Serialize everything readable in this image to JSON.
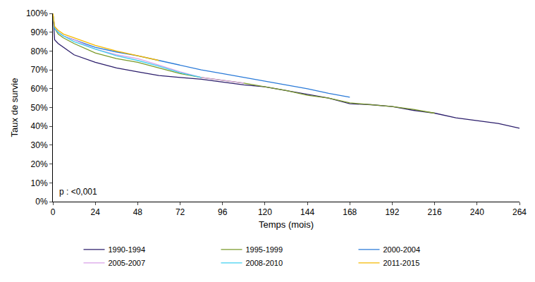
{
  "chart_data": {
    "type": "line",
    "x_label": "Temps (mois)",
    "y_label": "Taux de survie",
    "annotation": "p : <0,001",
    "x": [
      0,
      1,
      3,
      6,
      12,
      24,
      36,
      48,
      60,
      72,
      84,
      96,
      108,
      120,
      132,
      144,
      156,
      168,
      180,
      192,
      204,
      216,
      228,
      240,
      252,
      264
    ],
    "series": [
      {
        "name": "1990-1994",
        "color": "#2b1d6b",
        "values": [
          100,
          86,
          84,
          82,
          78,
          74,
          71,
          69,
          67,
          66,
          65,
          63.5,
          62,
          61,
          59,
          57,
          55,
          52,
          51.5,
          50.5,
          48.5,
          47,
          44.5,
          43,
          41.5,
          39
        ]
      },
      {
        "name": "1995-1999",
        "color": "#7a9a2a",
        "values": [
          100,
          92,
          89,
          87,
          84,
          79,
          76,
          74,
          71,
          68,
          66,
          64.5,
          63,
          61,
          59,
          56.5,
          55,
          52.5,
          51.5,
          50.5,
          49,
          47,
          null,
          null,
          null,
          null
        ]
      },
      {
        "name": "2000-2004",
        "color": "#2a7ad8",
        "values": [
          100,
          92,
          90,
          88,
          86,
          82,
          79.5,
          77.5,
          75,
          72.5,
          70,
          68,
          66,
          64,
          62,
          60,
          57.5,
          55.5,
          null,
          null,
          null,
          null,
          null,
          null,
          null,
          null
        ]
      },
      {
        "name": "2005-2007",
        "color": "#d9a0e8",
        "values": [
          100,
          93,
          90,
          88,
          86,
          81,
          78,
          76,
          72.5,
          69,
          66,
          64.5,
          63,
          null,
          null,
          null,
          null,
          null,
          null,
          null,
          null,
          null,
          null,
          null,
          null,
          null
        ]
      },
      {
        "name": "2008-2010",
        "color": "#40d0f0",
        "values": [
          100,
          92,
          90,
          88,
          85,
          81,
          77.5,
          75,
          72,
          68.5,
          66,
          null,
          null,
          null,
          null,
          null,
          null,
          null,
          null,
          null,
          null,
          null,
          null,
          null,
          null,
          null
        ]
      },
      {
        "name": "2011-2015",
        "color": "#f5b800",
        "values": [
          100,
          93,
          91,
          89,
          87,
          83,
          80,
          77.5,
          75,
          null,
          null,
          null,
          null,
          null,
          null,
          null,
          null,
          null,
          null,
          null,
          null,
          null,
          null,
          null,
          null,
          null
        ]
      }
    ],
    "xlim": [
      0,
      264
    ],
    "xticks": [
      0,
      24,
      48,
      72,
      96,
      120,
      144,
      168,
      192,
      216,
      240,
      264
    ],
    "ylim": [
      0,
      100
    ],
    "yticks": [
      {
        "value": 0,
        "label": "0%"
      },
      {
        "value": 10,
        "label": "10%"
      },
      {
        "value": 20,
        "label": "20%"
      },
      {
        "value": 30,
        "label": "30%"
      },
      {
        "value": 40,
        "label": "40%"
      },
      {
        "value": 50,
        "label": "50%"
      },
      {
        "value": 60,
        "label": "60%"
      },
      {
        "value": 70,
        "label": "70%"
      },
      {
        "value": 80,
        "label": "80%"
      },
      {
        "value": 90,
        "label": "90%"
      },
      {
        "value": 100,
        "label": "100%"
      }
    ],
    "grid": false,
    "legend": "bottom"
  }
}
